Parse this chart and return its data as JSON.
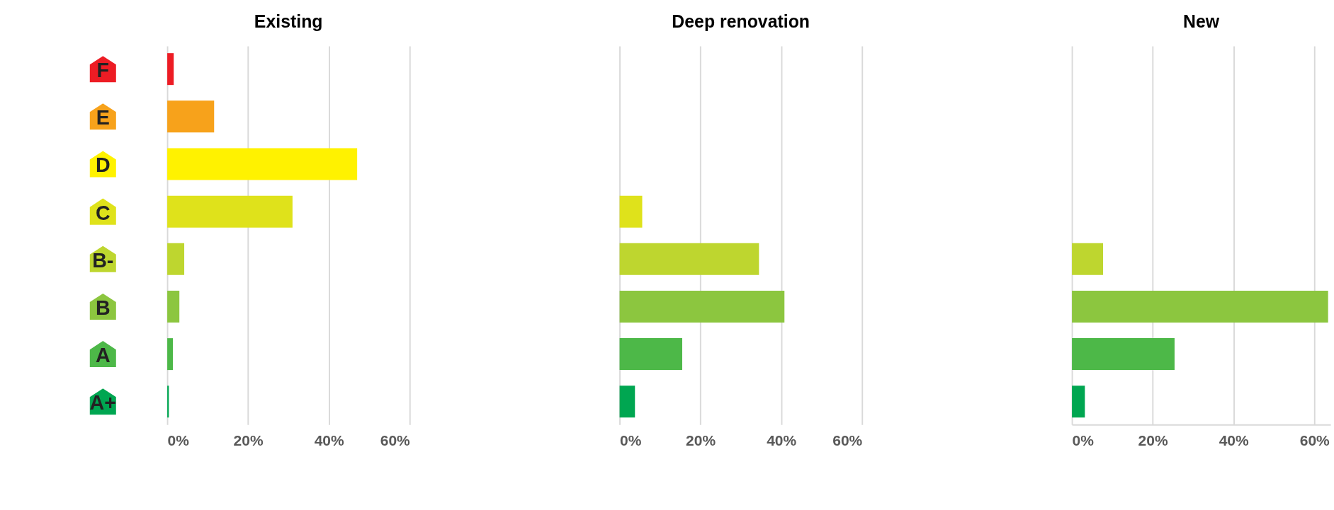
{
  "chart_data": [
    {
      "type": "bar",
      "orientation": "horizontal",
      "title": "Existing",
      "categories": [
        "F",
        "E",
        "D",
        "C",
        "B-",
        "B",
        "A",
        "A+"
      ],
      "values": [
        1.6,
        11.6,
        47,
        31,
        4.2,
        3,
        1.4,
        0.4
      ],
      "colors": [
        "#ed1c24",
        "#f7a21b",
        "#fff200",
        "#dfe21b",
        "#bed62f",
        "#8cc63f",
        "#4db848",
        "#00a651"
      ],
      "xlim": [
        0,
        60
      ],
      "xticks": [
        {
          "value": 0,
          "label": "0%"
        },
        {
          "value": 20,
          "label": "20%"
        },
        {
          "value": 40,
          "label": "40%"
        },
        {
          "value": 60,
          "label": "60%"
        }
      ],
      "grid": "x"
    },
    {
      "type": "bar",
      "orientation": "horizontal",
      "title": "Deep renovation",
      "categories": [
        null,
        null,
        null,
        null,
        null,
        null,
        null,
        null
      ],
      "values": [
        null,
        null,
        null,
        5.6,
        34.5,
        40.8,
        15.5,
        3.8
      ],
      "colors": [
        "#ed1c24",
        "#f7a21b",
        "#fff200",
        "#dfe21b",
        "#bed62f",
        "#8cc63f",
        "#4db848",
        "#00a651"
      ],
      "xlim": [
        0,
        60
      ],
      "xticks": [
        {
          "value": 0,
          "label": "0%"
        },
        {
          "value": 20,
          "label": "20%"
        },
        {
          "value": 40,
          "label": "40%"
        },
        {
          "value": 60,
          "label": "60%"
        }
      ],
      "grid": "x",
      "tick_labels": "x"
    },
    {
      "type": "bar",
      "orientation": "horizontal",
      "title": "New",
      "categories": [
        null,
        null,
        null,
        null,
        null,
        null,
        null,
        null
      ],
      "values": [
        null,
        null,
        null,
        null,
        7.7,
        63.4,
        25.4,
        3.2
      ],
      "colors": [
        "#ed1c24",
        "#f7a21b",
        "#fff200",
        "#dfe21b",
        "#bed62f",
        "#8cc63f",
        "#4db848",
        "#00a651"
      ],
      "xlim": [
        0,
        64
      ],
      "xticks": [
        {
          "value": 0,
          "label": "0%"
        },
        {
          "value": 20,
          "label": "20%"
        },
        {
          "value": 40,
          "label": "40%"
        },
        {
          "value": 60,
          "label": "60%"
        }
      ],
      "grid": "x",
      "tick_labels": "x"
    }
  ]
}
